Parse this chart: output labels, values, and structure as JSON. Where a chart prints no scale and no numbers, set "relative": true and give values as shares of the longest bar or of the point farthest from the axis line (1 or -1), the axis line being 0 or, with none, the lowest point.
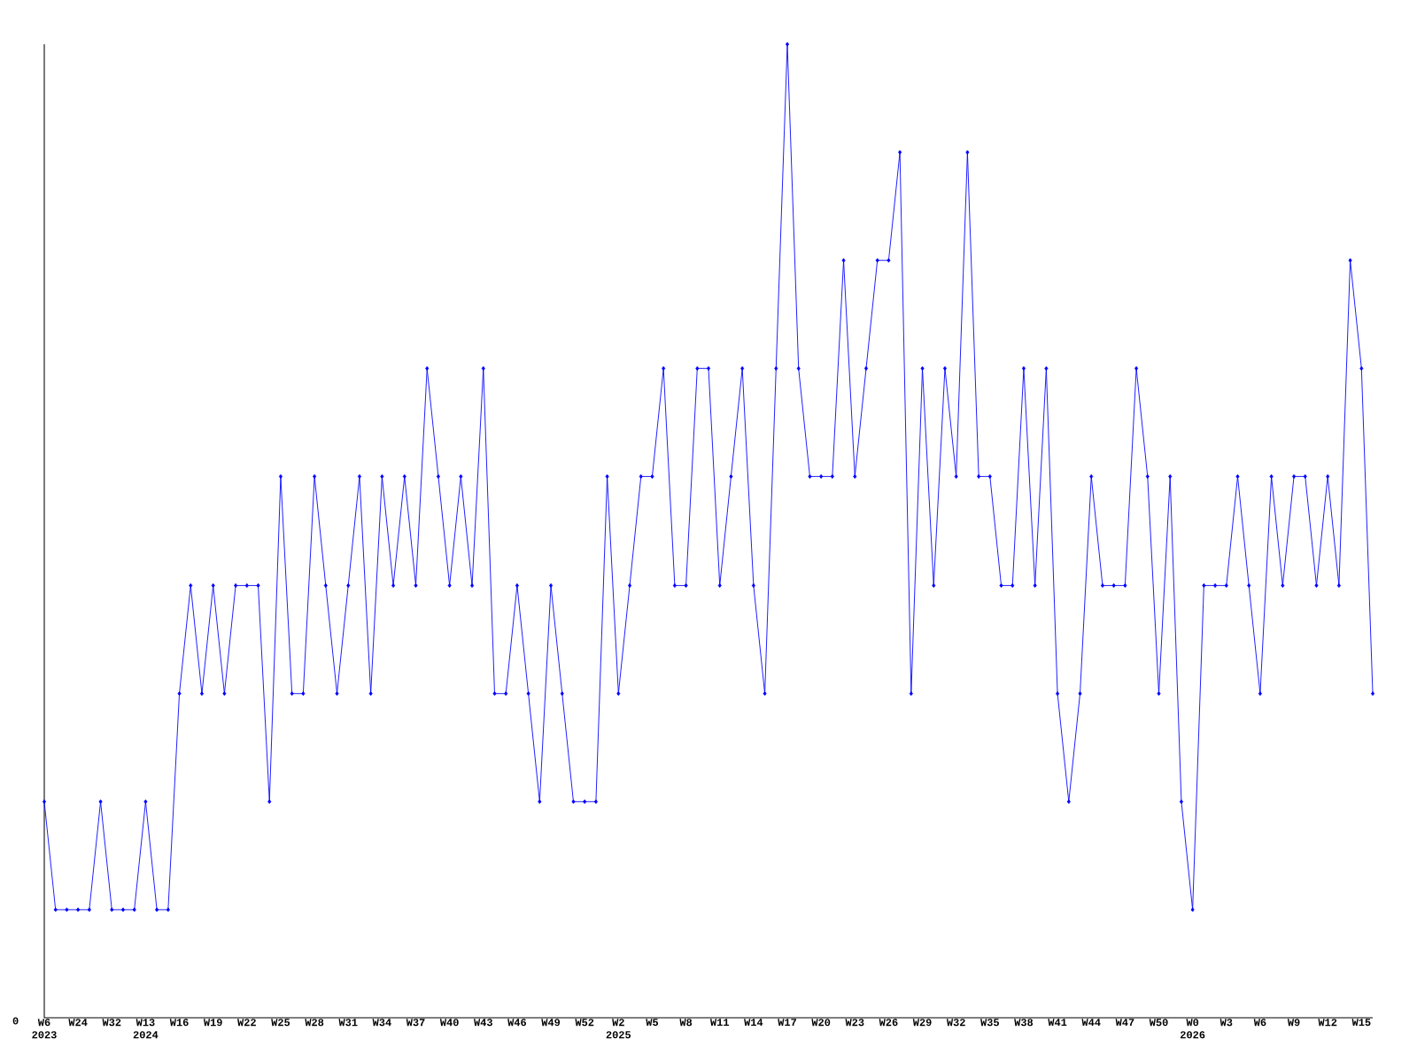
{
  "chart_data": {
    "type": "line",
    "relative": true,
    "color": "#0000ff",
    "marker": "diamond",
    "line_style": "solid",
    "grid": false,
    "categories": [
      "W6 2023",
      null,
      null,
      "W24",
      null,
      null,
      "W32",
      null,
      null,
      "W13 2024",
      null,
      null,
      "W16",
      null,
      null,
      "W19",
      null,
      null,
      "W22",
      null,
      null,
      "W25",
      null,
      null,
      "W28",
      null,
      null,
      "W31",
      null,
      null,
      "W34",
      null,
      null,
      "W37",
      null,
      null,
      "W40",
      null,
      null,
      "W43",
      null,
      null,
      "W46",
      null,
      null,
      "W49",
      null,
      null,
      "W52",
      null,
      null,
      "W2 2025",
      null,
      null,
      "W5",
      null,
      null,
      "W8",
      null,
      null,
      "W11",
      null,
      null,
      "W14",
      null,
      null,
      "W17",
      null,
      null,
      "W20",
      null,
      null,
      "W23",
      null,
      null,
      "W26",
      null,
      null,
      "W29",
      null,
      null,
      "W32",
      null,
      null,
      "W35",
      null,
      null,
      "W38",
      null,
      null,
      "W41",
      null,
      null,
      "W44",
      null,
      null,
      "W47",
      null,
      null,
      "W50",
      null,
      null,
      "W0 2026",
      null,
      null,
      "W3",
      null,
      null,
      "W6",
      null,
      null,
      "W9",
      null,
      null,
      "W12",
      null,
      null,
      "W15",
      null
    ],
    "values": [
      0.222,
      0.111,
      0.111,
      0.111,
      0.111,
      0.222,
      0.111,
      0.111,
      0.111,
      0.222,
      0.111,
      0.111,
      0.333,
      0.444,
      0.333,
      0.444,
      0.333,
      0.444,
      0.444,
      0.444,
      0.222,
      0.556,
      0.333,
      0.333,
      0.556,
      0.444,
      0.333,
      0.444,
      0.556,
      0.333,
      0.556,
      0.444,
      0.556,
      0.444,
      0.667,
      0.556,
      0.444,
      0.556,
      0.444,
      0.667,
      0.333,
      0.333,
      0.444,
      0.333,
      0.222,
      0.444,
      0.333,
      0.222,
      0.222,
      0.222,
      0.556,
      0.333,
      0.444,
      0.556,
      0.556,
      0.667,
      0.444,
      0.444,
      0.667,
      0.667,
      0.444,
      0.556,
      0.667,
      0.444,
      0.333,
      0.667,
      1,
      0.667,
      0.556,
      0.556,
      0.556,
      0.778,
      0.556,
      0.667,
      0.778,
      0.778,
      0.889,
      0.333,
      0.667,
      0.444,
      0.667,
      0.556,
      0.889,
      0.556,
      0.556,
      0.444,
      0.444,
      0.667,
      0.444,
      0.667,
      0.333,
      0.222,
      0.333,
      0.556,
      0.444,
      0.444,
      0.444,
      0.667,
      0.556,
      0.333,
      0.556,
      0.222,
      0.111,
      0.444,
      0.444,
      0.444,
      0.556,
      0.444,
      0.333,
      0.556,
      0.444,
      0.556,
      0.556,
      0.444,
      0.556,
      0.444,
      0.778,
      0.667,
      0.333
    ],
    "annotations": [
      "0"
    ]
  }
}
